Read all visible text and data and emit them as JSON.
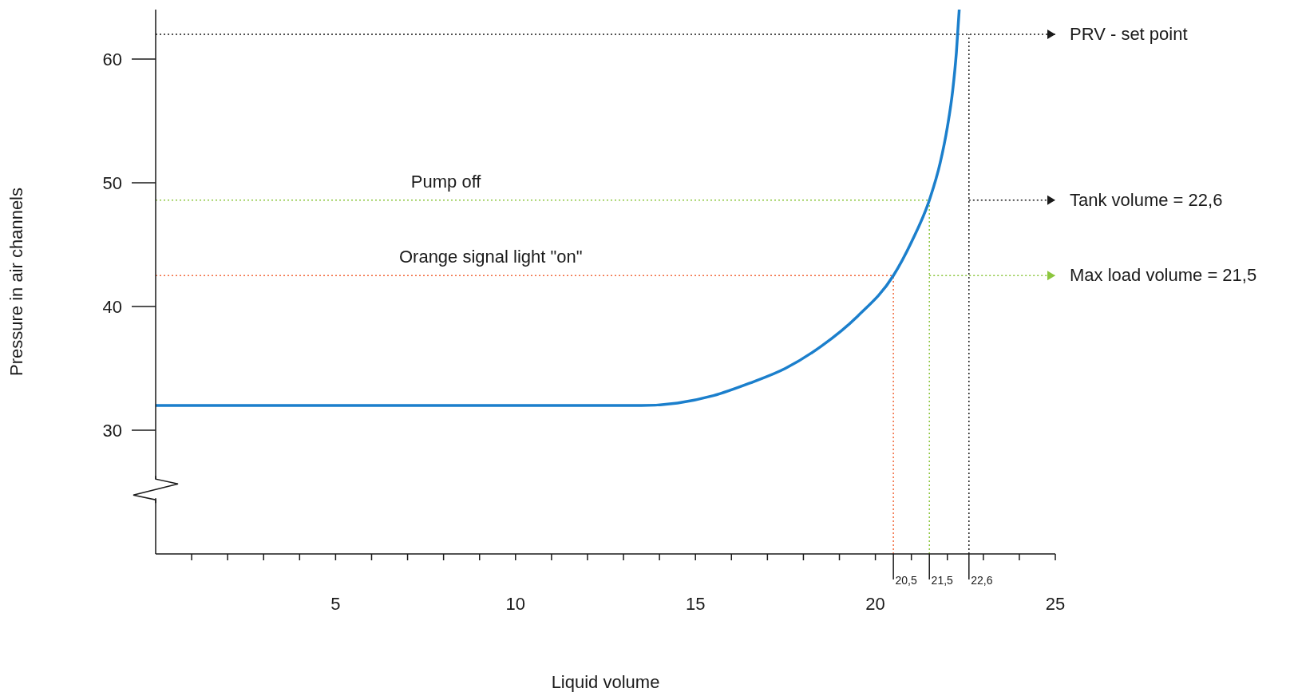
{
  "chart_data": {
    "type": "line",
    "xlabel": "Liquid volume",
    "ylabel": "Pressure in air channels",
    "xlim": [
      0,
      25
    ],
    "ylim": [
      20,
      64
    ],
    "xticks": [
      {
        "value": 1,
        "label": null
      },
      {
        "value": 2,
        "label": null
      },
      {
        "value": 3,
        "label": null
      },
      {
        "value": 4,
        "label": null
      },
      5,
      {
        "value": 6,
        "label": null
      },
      {
        "value": 7,
        "label": null
      },
      {
        "value": 8,
        "label": null
      },
      {
        "value": 9,
        "label": null
      },
      10,
      {
        "value": 11,
        "label": null
      },
      {
        "value": 12,
        "label": null
      },
      {
        "value": 13,
        "label": null
      },
      {
        "value": 14,
        "label": null
      },
      15,
      {
        "value": 16,
        "label": null
      },
      {
        "value": 17,
        "label": null
      },
      {
        "value": 18,
        "label": null
      },
      {
        "value": 19,
        "label": null
      },
      20,
      {
        "value": 21,
        "label": null
      },
      {
        "value": 22,
        "label": null
      },
      {
        "value": 23,
        "label": null
      },
      {
        "value": 24,
        "label": null
      },
      25
    ],
    "yticks": [
      30,
      40,
      50,
      60
    ],
    "series": [
      {
        "color": "#1b7fcc",
        "x": [
          0,
          13.5,
          14.5,
          15.5,
          16.5,
          17.5,
          18.5,
          19.5,
          20.5,
          21,
          21.5,
          21.8,
          22,
          22.15,
          22.25,
          22.33
        ],
        "values": [
          32,
          32,
          32.2,
          32.8,
          33.8,
          35,
          36.8,
          39.2,
          42.5,
          45.2,
          48.6,
          51.6,
          54.5,
          57.5,
          60.5,
          64
        ]
      }
    ],
    "ref_lines": [
      {
        "axis": "y",
        "value": 62,
        "label": "PRV - set point",
        "color": "#1a1a1a",
        "line_style": "dotted"
      },
      {
        "axis": "y",
        "value": 48.6,
        "label": "Pump off",
        "color": "#8cc63e",
        "line_style": "dotted"
      },
      {
        "axis": "y",
        "value": 42.5,
        "label": "Orange signal light \"on\"",
        "color": "#f26a3d",
        "line_style": "dotted"
      },
      {
        "axis": "x",
        "value": 20.5,
        "label": "20,5",
        "color": "#f26a3d",
        "line_style": "dotted"
      },
      {
        "axis": "x",
        "value": 21.5,
        "label": "21,5",
        "color": "#8cc63e",
        "line_style": "dotted"
      },
      {
        "axis": "x",
        "value": 22.6,
        "label": "22,6",
        "color": "#1a1a1a",
        "line_style": "dotted"
      }
    ],
    "annotations": [
      {
        "text": "Tank volume = 22,6",
        "x": 22.6,
        "y": 48.6
      },
      {
        "text": "Max load volume = 21,5",
        "x": 21.5,
        "y": 42.5
      }
    ]
  }
}
